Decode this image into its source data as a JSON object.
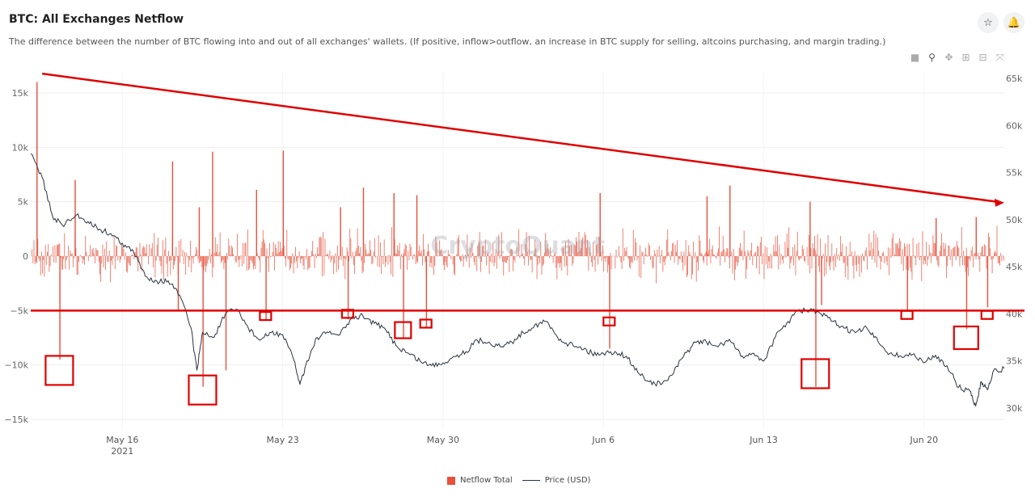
{
  "header": {
    "title": "BTC: All Exchanges Netflow",
    "subtitle": "The difference between the number of BTC flowing into and out of all exchanges' wallets. (If positive, inflow>outflow, an increase in BTC supply for selling, altcoins purchasing, and margin trading.)",
    "star_icon": "star-icon",
    "bell_icon": "bell-icon"
  },
  "toolbar": {
    "icons": [
      "camera-icon",
      "zoom-icon",
      "pan-icon",
      "zoom-in-icon",
      "zoom-out-icon",
      "reset-icon"
    ]
  },
  "watermark": "CryptoQuant",
  "legend": {
    "netflow_label": "Netflow Total",
    "price_label": "Price (USD)"
  },
  "colors": {
    "netflow": "#e8503a",
    "price": "#2b3340",
    "annotation": "#e00000"
  },
  "chart_data": {
    "type": "bar+line",
    "x_ticks": [
      {
        "label": "May 16",
        "sub": "2021",
        "date": "2021-05-16"
      },
      {
        "label": "May 23",
        "sub": "",
        "date": "2021-05-23"
      },
      {
        "label": "May 30",
        "sub": "",
        "date": "2021-05-30"
      },
      {
        "label": "Jun 6",
        "sub": "",
        "date": "2021-06-06"
      },
      {
        "label": "Jun 13",
        "sub": "",
        "date": "2021-06-13"
      },
      {
        "label": "Jun 20",
        "sub": "",
        "date": "2021-06-20"
      }
    ],
    "x_range": [
      "2021-05-12",
      "2021-06-23"
    ],
    "y_left": {
      "ticks": [
        "15k",
        "10k",
        "5k",
        "0",
        "−5k",
        "−10k",
        "−15k"
      ],
      "values": [
        15000,
        10000,
        5000,
        0,
        -5000,
        -10000,
        -15000
      ],
      "range": [
        -15000,
        15000
      ]
    },
    "y_right": {
      "ticks": [
        "65k",
        "60k",
        "55k",
        "50k",
        "45k",
        "40k",
        "35k",
        "30k"
      ],
      "values": [
        65000,
        60000,
        55000,
        50000,
        45000,
        40000,
        35000,
        30000
      ],
      "range": [
        30000,
        65000
      ]
    },
    "series": [
      {
        "name": "Netflow Total",
        "type": "bar",
        "axis": "left",
        "spikes": [
          {
            "date": "2021-05-12T06:00",
            "value": 16000
          },
          {
            "date": "2021-05-13T06:00",
            "value": -9500
          },
          {
            "date": "2021-05-13T22:00",
            "value": 7000
          },
          {
            "date": "2021-05-18T04:00",
            "value": 8700
          },
          {
            "date": "2021-05-18T10:00",
            "value": -5000
          },
          {
            "date": "2021-05-19T08:00",
            "value": 4500
          },
          {
            "date": "2021-05-19T12:00",
            "value": -12000
          },
          {
            "date": "2021-05-19T22:00",
            "value": 9600
          },
          {
            "date": "2021-05-20T12:00",
            "value": -10500
          },
          {
            "date": "2021-05-21T20:00",
            "value": 6100
          },
          {
            "date": "2021-05-22T06:00",
            "value": -5800
          },
          {
            "date": "2021-05-23T00:00",
            "value": 9700
          },
          {
            "date": "2021-05-25T12:00",
            "value": 4500
          },
          {
            "date": "2021-05-25T20:00",
            "value": -5800
          },
          {
            "date": "2021-05-26T12:00",
            "value": 6300
          },
          {
            "date": "2021-05-27T20:00",
            "value": 5800
          },
          {
            "date": "2021-05-28T06:00",
            "value": -7600
          },
          {
            "date": "2021-05-28T20:00",
            "value": 5600
          },
          {
            "date": "2021-05-29T06:00",
            "value": -6600
          },
          {
            "date": "2021-06-05T20:00",
            "value": 5800
          },
          {
            "date": "2021-06-06T06:00",
            "value": -8500
          },
          {
            "date": "2021-06-10T12:00",
            "value": 5500
          },
          {
            "date": "2021-06-11T12:00",
            "value": 6500
          },
          {
            "date": "2021-06-15T00:00",
            "value": 5000
          },
          {
            "date": "2021-06-15T06:00",
            "value": -12000
          },
          {
            "date": "2021-06-15T12:00",
            "value": -4500
          },
          {
            "date": "2021-06-19T06:00",
            "value": -5000
          },
          {
            "date": "2021-06-20T12:00",
            "value": 3500
          },
          {
            "date": "2021-06-21T20:00",
            "value": -6700
          },
          {
            "date": "2021-06-22T06:00",
            "value": 3600
          },
          {
            "date": "2021-06-22T18:00",
            "value": -4700
          }
        ],
        "typical_range": [
          -2500,
          3000
        ]
      },
      {
        "name": "Price (USD)",
        "type": "line",
        "axis": "right",
        "points": [
          [
            "2021-05-12T00:00",
            57000
          ],
          [
            "2021-05-12T12:00",
            54500
          ],
          [
            "2021-05-13T00:00",
            50000
          ],
          [
            "2021-05-13T12:00",
            49500
          ],
          [
            "2021-05-14T00:00",
            50500
          ],
          [
            "2021-05-14T12:00",
            49800
          ],
          [
            "2021-05-15T00:00",
            49000
          ],
          [
            "2021-05-15T12:00",
            48500
          ],
          [
            "2021-05-16T00:00",
            47500
          ],
          [
            "2021-05-16T12:00",
            46500
          ],
          [
            "2021-05-17T00:00",
            44000
          ],
          [
            "2021-05-17T12:00",
            43500
          ],
          [
            "2021-05-18T00:00",
            43500
          ],
          [
            "2021-05-18T12:00",
            42000
          ],
          [
            "2021-05-19T00:00",
            38500
          ],
          [
            "2021-05-19T06:00",
            34000
          ],
          [
            "2021-05-19T12:00",
            38000
          ],
          [
            "2021-05-20T00:00",
            37500
          ],
          [
            "2021-05-20T12:00",
            40000
          ],
          [
            "2021-05-21T00:00",
            40500
          ],
          [
            "2021-05-21T12:00",
            38500
          ],
          [
            "2021-05-22T00:00",
            37200
          ],
          [
            "2021-05-22T12:00",
            38000
          ],
          [
            "2021-05-23T00:00",
            37800
          ],
          [
            "2021-05-23T12:00",
            35000
          ],
          [
            "2021-05-23T18:00",
            32500
          ],
          [
            "2021-05-24T00:00",
            34500
          ],
          [
            "2021-05-24T12:00",
            37500
          ],
          [
            "2021-05-25T00:00",
            38000
          ],
          [
            "2021-05-25T12:00",
            37800
          ],
          [
            "2021-05-26T00:00",
            39500
          ],
          [
            "2021-05-26T12:00",
            39800
          ],
          [
            "2021-05-27T00:00",
            39000
          ],
          [
            "2021-05-27T12:00",
            38300
          ],
          [
            "2021-05-28T00:00",
            36500
          ],
          [
            "2021-05-28T12:00",
            35800
          ],
          [
            "2021-05-29T00:00",
            35000
          ],
          [
            "2021-05-29T12:00",
            34500
          ],
          [
            "2021-05-30T00:00",
            34800
          ],
          [
            "2021-05-30T12:00",
            35500
          ],
          [
            "2021-05-31T00:00",
            36000
          ],
          [
            "2021-05-31T12:00",
            37200
          ],
          [
            "2021-06-01T00:00",
            37000
          ],
          [
            "2021-06-01T12:00",
            36500
          ],
          [
            "2021-06-02T00:00",
            37000
          ],
          [
            "2021-06-02T12:00",
            38000
          ],
          [
            "2021-06-03T00:00",
            38800
          ],
          [
            "2021-06-03T12:00",
            39200
          ],
          [
            "2021-06-04T00:00",
            37500
          ],
          [
            "2021-06-04T12:00",
            36800
          ],
          [
            "2021-06-05T00:00",
            36500
          ],
          [
            "2021-06-05T12:00",
            35800
          ],
          [
            "2021-06-06T00:00",
            35800
          ],
          [
            "2021-06-06T12:00",
            36000
          ],
          [
            "2021-06-07T00:00",
            35500
          ],
          [
            "2021-06-07T12:00",
            33800
          ],
          [
            "2021-06-08T00:00",
            32800
          ],
          [
            "2021-06-08T12:00",
            32500
          ],
          [
            "2021-06-09T00:00",
            33500
          ],
          [
            "2021-06-09T12:00",
            35500
          ],
          [
            "2021-06-10T00:00",
            37000
          ],
          [
            "2021-06-10T12:00",
            37000
          ],
          [
            "2021-06-11T00:00",
            36500
          ],
          [
            "2021-06-11T12:00",
            37300
          ],
          [
            "2021-06-12T00:00",
            35500
          ],
          [
            "2021-06-12T12:00",
            35800
          ],
          [
            "2021-06-13T00:00",
            35000
          ],
          [
            "2021-06-13T12:00",
            37500
          ],
          [
            "2021-06-14T00:00",
            39000
          ],
          [
            "2021-06-14T12:00",
            40300
          ],
          [
            "2021-06-15T00:00",
            40400
          ],
          [
            "2021-06-15T12:00",
            40000
          ],
          [
            "2021-06-16T00:00",
            39200
          ],
          [
            "2021-06-16T12:00",
            38500
          ],
          [
            "2021-06-17T00:00",
            38000
          ],
          [
            "2021-06-17T12:00",
            38500
          ],
          [
            "2021-06-18T00:00",
            37000
          ],
          [
            "2021-06-18T12:00",
            35800
          ],
          [
            "2021-06-19T00:00",
            35500
          ],
          [
            "2021-06-19T12:00",
            35700
          ],
          [
            "2021-06-20T00:00",
            34800
          ],
          [
            "2021-06-20T12:00",
            35600
          ],
          [
            "2021-06-21T00:00",
            34500
          ],
          [
            "2021-06-21T12:00",
            32200
          ],
          [
            "2021-06-22T00:00",
            31800
          ],
          [
            "2021-06-22T06:00",
            30200
          ],
          [
            "2021-06-22T12:00",
            32800
          ],
          [
            "2021-06-22T18:00",
            32000
          ],
          [
            "2021-06-23T00:00",
            33800
          ],
          [
            "2021-06-23T12:00",
            34200
          ]
        ]
      }
    ],
    "annotations": [
      {
        "type": "arrow",
        "from": [
          "2021-05-12T12:00",
          65500
        ],
        "to": [
          "2021-06-23T12:00",
          51800
        ],
        "axis": "right"
      },
      {
        "type": "hline",
        "value": -5000,
        "axis": "left"
      },
      {
        "type": "box",
        "date": "2021-05-13T06:00",
        "value": -10500
      },
      {
        "type": "box",
        "date": "2021-05-19T12:00",
        "value": -12300
      },
      {
        "type": "box",
        "date": "2021-05-22T06:00",
        "value": -5500
      },
      {
        "type": "box",
        "date": "2021-05-25T20:00",
        "value": -5300
      },
      {
        "type": "box",
        "date": "2021-05-28T06:00",
        "value": -6800
      },
      {
        "type": "box",
        "date": "2021-05-29T06:00",
        "value": -6200
      },
      {
        "type": "box",
        "date": "2021-06-06T06:00",
        "value": -6000
      },
      {
        "type": "box",
        "date": "2021-06-15T06:00",
        "value": -10800
      },
      {
        "type": "box",
        "date": "2021-06-19T06:00",
        "value": -5400
      },
      {
        "type": "box",
        "date": "2021-06-21T20:00",
        "value": -7500
      },
      {
        "type": "box",
        "date": "2021-06-22T18:00",
        "value": -5400
      }
    ]
  }
}
